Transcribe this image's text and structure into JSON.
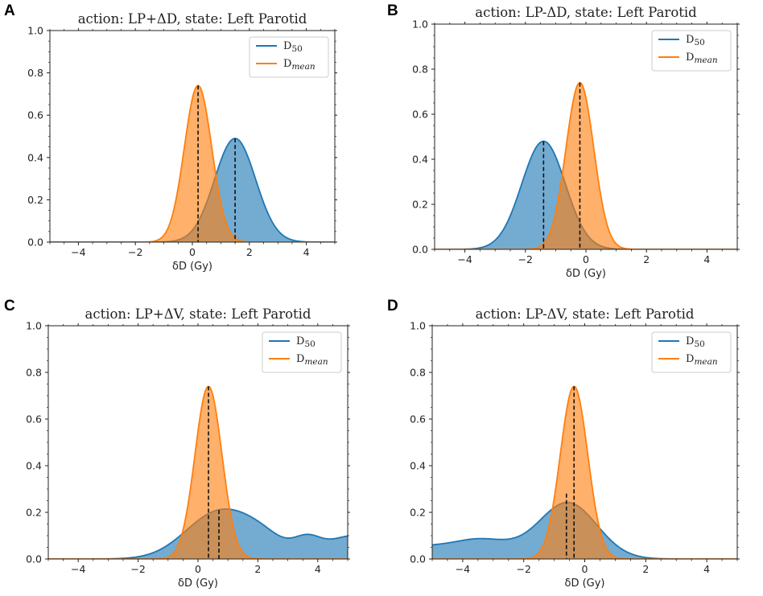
{
  "chart_data": [
    {
      "panel": "A",
      "type": "area",
      "title": "action: LP+ΔD,  state: Left Parotid",
      "xlabel": "δD (Gy)",
      "ylabel": "",
      "xlim": [
        -5,
        5
      ],
      "ylim": [
        0,
        1.0
      ],
      "xticks": [
        -4,
        -2,
        0,
        2,
        4
      ],
      "yticks": [
        0.0,
        0.2,
        0.4,
        0.6,
        0.8,
        1.0
      ],
      "legend": {
        "position": "top-right",
        "entries": [
          "D50",
          "Dmean"
        ]
      },
      "series": [
        {
          "name": "D50",
          "color": "#1f77b4",
          "peak_x": 1.5,
          "peak_y": 0.49,
          "components": [
            {
              "mu": 1.5,
              "sigma": 0.72,
              "amp": 0.49
            }
          ]
        },
        {
          "name": "Dmean",
          "color": "#ff7f0e",
          "peak_x": 0.2,
          "peak_y": 0.74,
          "components": [
            {
              "mu": 0.2,
              "sigma": 0.48,
              "amp": 0.74
            }
          ]
        }
      ]
    },
    {
      "panel": "B",
      "type": "area",
      "title": "action: LP-ΔD,  state: Left Parotid",
      "xlabel": "δD (Gy)",
      "ylabel": "",
      "xlim": [
        -5,
        5
      ],
      "ylim": [
        0,
        1.0
      ],
      "xticks": [
        -4,
        -2,
        0,
        2,
        4
      ],
      "yticks": [
        0.0,
        0.2,
        0.4,
        0.6,
        0.8,
        1.0
      ],
      "legend": {
        "position": "top-right",
        "entries": [
          "D50",
          "Dmean"
        ]
      },
      "series": [
        {
          "name": "D50",
          "color": "#1f77b4",
          "peak_x": -1.4,
          "peak_y": 0.48,
          "components": [
            {
              "mu": -1.4,
              "sigma": 0.72,
              "amp": 0.48
            }
          ]
        },
        {
          "name": "Dmean",
          "color": "#ff7f0e",
          "peak_x": -0.2,
          "peak_y": 0.74,
          "components": [
            {
              "mu": -0.2,
              "sigma": 0.46,
              "amp": 0.74
            }
          ]
        }
      ]
    },
    {
      "panel": "C",
      "type": "area",
      "title": "action: LP+ΔV,  state: Left Parotid",
      "xlabel": "δD (Gy)",
      "ylabel": "",
      "xlim": [
        -5,
        5
      ],
      "ylim": [
        0,
        1.0
      ],
      "xticks": [
        -4,
        -2,
        0,
        2,
        4
      ],
      "yticks": [
        0.0,
        0.2,
        0.4,
        0.6,
        0.8,
        1.0
      ],
      "legend": {
        "position": "top-right",
        "entries": [
          "D50",
          "Dmean"
        ]
      },
      "series": [
        {
          "name": "D50",
          "color": "#1f77b4",
          "peak_x": 0.7,
          "peak_y": 0.21,
          "components": [
            {
              "mu": 0.7,
              "sigma": 1.1,
              "amp": 0.2
            },
            {
              "mu": 2.2,
              "sigma": 0.8,
              "amp": 0.065
            },
            {
              "mu": 3.65,
              "sigma": 0.45,
              "amp": 0.065
            },
            {
              "mu": 5.2,
              "sigma": 0.9,
              "amp": 0.1
            }
          ]
        },
        {
          "name": "Dmean",
          "color": "#ff7f0e",
          "peak_x": 0.35,
          "peak_y": 0.74,
          "components": [
            {
              "mu": 0.35,
              "sigma": 0.45,
              "amp": 0.74
            }
          ]
        }
      ]
    },
    {
      "panel": "D",
      "type": "area",
      "title": "action: LP-ΔV,  state: Left Parotid",
      "xlabel": "δD (Gy)",
      "ylabel": "",
      "xlim": [
        -5,
        5
      ],
      "ylim": [
        0,
        1.0
      ],
      "xticks": [
        -4,
        -2,
        0,
        2,
        4
      ],
      "yticks": [
        0.0,
        0.2,
        0.4,
        0.6,
        0.8,
        1.0
      ],
      "legend": {
        "position": "top-right",
        "entries": [
          "D50",
          "Dmean"
        ]
      },
      "series": [
        {
          "name": "D50",
          "color": "#1f77b4",
          "peak_x": -0.6,
          "peak_y": 0.28,
          "components": [
            {
              "mu": -0.55,
              "sigma": 0.95,
              "amp": 0.24
            },
            {
              "mu": -3.5,
              "sigma": 1.1,
              "amp": 0.085
            },
            {
              "mu": -5.3,
              "sigma": 0.6,
              "amp": 0.03
            }
          ]
        },
        {
          "name": "Dmean",
          "color": "#ff7f0e",
          "peak_x": -0.35,
          "peak_y": 0.74,
          "components": [
            {
              "mu": -0.35,
              "sigma": 0.45,
              "amp": 0.74
            }
          ]
        }
      ]
    }
  ],
  "legend_labels": {
    "d50": {
      "base": "D",
      "sub": "50"
    },
    "dmean": {
      "base": "D",
      "sub": "mean"
    }
  }
}
